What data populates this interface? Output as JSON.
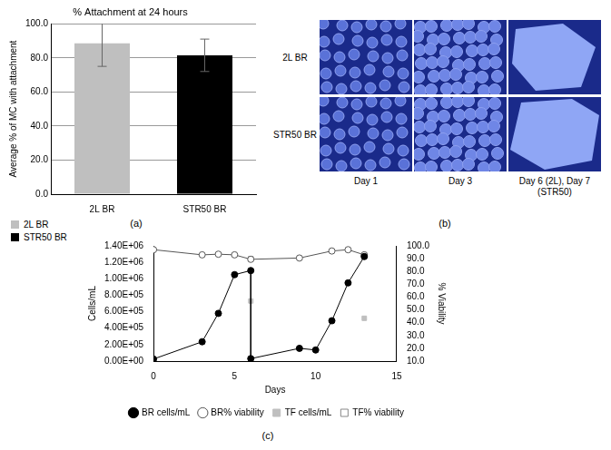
{
  "chart_data": [
    {
      "type": "bar",
      "panel_label": "(a)",
      "title": "% Attachment at 24 hours",
      "y_label": "Average % of MC with attachment",
      "categories": [
        "2L BR",
        "STR50 BR"
      ],
      "values": [
        88.5,
        81.5
      ],
      "errors": [
        13.5,
        9.5
      ],
      "colors": [
        "#bfbfbf",
        "#000000"
      ],
      "ylim": [
        0,
        100
      ],
      "yticks": [
        {
          "value": 0,
          "label": "0.0"
        },
        {
          "value": 20,
          "label": "20.0"
        },
        {
          "value": 40,
          "label": "40.0"
        },
        {
          "value": 60,
          "label": "60.0"
        },
        {
          "value": 80,
          "label": "80.0"
        },
        {
          "value": 100,
          "label": "100.0"
        }
      ],
      "grid": true,
      "legend": "bottom"
    },
    {
      "type": "line",
      "panel_label": "(c)",
      "x_label": "Days",
      "y_label": "Cells/mL",
      "y2_label": "% Viability",
      "xlim": [
        0,
        15
      ],
      "xticks": [
        0,
        5,
        10,
        15
      ],
      "ylim": [
        0,
        1400000
      ],
      "yticks": [
        {
          "value": 0,
          "label": "0.00E+00"
        },
        {
          "value": 200000,
          "label": "2.00E+05"
        },
        {
          "value": 400000,
          "label": "4.00E+05"
        },
        {
          "value": 600000,
          "label": "6.00E+05"
        },
        {
          "value": 800000,
          "label": "8.00E+05"
        },
        {
          "value": 1000000,
          "label": "1.00E+06"
        },
        {
          "value": 1200000,
          "label": "1.20E+06"
        },
        {
          "value": 1400000,
          "label": "1.40E+06"
        }
      ],
      "y2lim": [
        10,
        100
      ],
      "y2ticks": [
        {
          "value": 10,
          "label": "10.0"
        },
        {
          "value": 20,
          "label": "20.0"
        },
        {
          "value": 30,
          "label": "30.0"
        },
        {
          "value": 40,
          "label": "40.0"
        },
        {
          "value": 50,
          "label": "50.0"
        },
        {
          "value": 60,
          "label": "60.0"
        },
        {
          "value": 70,
          "label": "70.0"
        },
        {
          "value": 80,
          "label": "80.0"
        },
        {
          "value": 90,
          "label": "90.0"
        },
        {
          "value": 100,
          "label": "100.0"
        }
      ],
      "grid": false,
      "legend": "bottom",
      "series": [
        {
          "name": "BR cells/mL",
          "color": "#000000",
          "marker": "circle",
          "line_style": "solid",
          "x": [
            0,
            3,
            4,
            5,
            6,
            6,
            9,
            10,
            11,
            12,
            13
          ],
          "values": [
            25000,
            235000,
            580000,
            1050000,
            1100000,
            30000,
            155000,
            135000,
            490000,
            950000,
            1270000
          ]
        },
        {
          "name": "BR% viability",
          "color": "#555555",
          "marker": "circle_open",
          "line_style": "solid",
          "axis": "y2",
          "x": [
            0,
            3,
            4,
            5,
            6,
            9,
            11,
            12,
            13
          ],
          "values": [
            97,
            93,
            93.5,
            93,
            89.5,
            90.5,
            96,
            97,
            93
          ]
        },
        {
          "name": "TF cells/mL",
          "color": "#bfbfbf",
          "marker": "square",
          "line_style": "none",
          "x": [
            6,
            13
          ],
          "values": [
            730000,
            520000
          ]
        },
        {
          "name": "TF% viability",
          "color": "#888888",
          "marker": "square_open",
          "line_style": "none",
          "axis": "y2",
          "x": [
            6,
            13
          ],
          "values": [
            90,
            92
          ]
        }
      ]
    }
  ],
  "image_panel": {
    "panel_label": "(b)",
    "rows": [
      "2L BR",
      "STR50 BR"
    ],
    "columns": [
      "Day 1",
      "Day 3",
      "Day 6 (2L), Day 7 (STR50)"
    ]
  }
}
